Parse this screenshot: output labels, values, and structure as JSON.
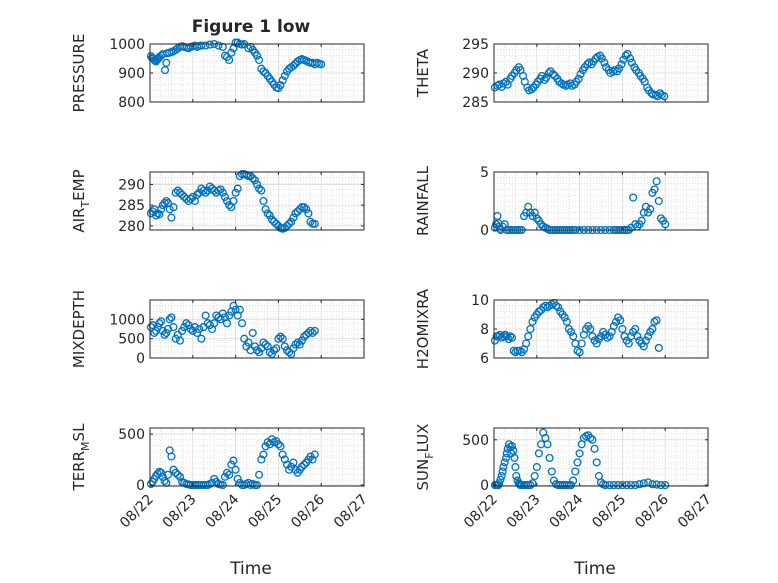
{
  "figure": {
    "title": "Figure 1 low",
    "xlabel": "Time",
    "x_tick_labels": [
      "08/22",
      "08/23",
      "08/24",
      "08/25",
      "08/26",
      "08/27"
    ],
    "marker_color": "#0072BD",
    "grid": "dotted minor + major",
    "marker": "open circle"
  },
  "chart_data": [
    {
      "type": "scatter",
      "ylabel": "PRESSURE",
      "xlim": [
        0,
        5
      ],
      "ylim": [
        800,
        1000
      ],
      "yticks": [
        800,
        900,
        1000
      ],
      "ytick_labels": [
        "800",
        "900",
        "1000"
      ],
      "x": [
        0.02,
        0.05,
        0.08,
        0.1,
        0.12,
        0.14,
        0.17,
        0.2,
        0.22,
        0.26,
        0.3,
        0.35,
        0.38,
        0.4,
        0.45,
        0.5,
        0.55,
        0.6,
        0.65,
        0.7,
        0.75,
        0.8,
        0.85,
        0.9,
        0.95,
        1.0,
        1.05,
        1.1,
        1.15,
        1.2,
        1.3,
        1.4,
        1.5,
        1.6,
        1.7,
        1.75,
        1.8,
        1.85,
        1.9,
        1.95,
        2.0,
        2.05,
        2.1,
        2.15,
        2.2,
        2.3,
        2.35,
        2.4,
        2.45,
        2.5,
        2.55,
        2.6,
        2.65,
        2.7,
        2.75,
        2.8,
        2.85,
        2.9,
        2.95,
        3.0,
        3.05,
        3.1,
        3.15,
        3.2,
        3.25,
        3.3,
        3.35,
        3.4,
        3.45,
        3.5,
        3.55,
        3.6,
        3.65,
        3.7,
        3.75,
        3.8,
        3.85,
        3.9,
        3.95,
        4.0
      ],
      "y": [
        958,
        952,
        950,
        945,
        942,
        940,
        948,
        950,
        955,
        960,
        965,
        910,
        935,
        968,
        970,
        972,
        975,
        980,
        985,
        990,
        992,
        990,
        988,
        985,
        990,
        992,
        995,
        990,
        993,
        995,
        995,
        998,
        1000,
        995,
        990,
        960,
        955,
        945,
        970,
        985,
        1005,
        1005,
        1000,
        998,
        1000,
        985,
        990,
        980,
        970,
        960,
        945,
        915,
        905,
        900,
        890,
        880,
        870,
        860,
        850,
        848,
        858,
        875,
        890,
        905,
        915,
        920,
        925,
        932,
        940,
        945,
        948,
        945,
        942,
        938,
        935,
        935,
        930,
        935,
        932,
        930
      ]
    },
    {
      "type": "scatter",
      "ylabel": "THETA",
      "xlim": [
        0,
        5
      ],
      "ylim": [
        285,
        295
      ],
      "yticks": [
        285,
        290,
        295
      ],
      "ytick_labels": [
        "285",
        "290",
        "295"
      ],
      "x": [
        0.02,
        0.08,
        0.12,
        0.18,
        0.22,
        0.28,
        0.32,
        0.38,
        0.42,
        0.48,
        0.52,
        0.58,
        0.62,
        0.68,
        0.72,
        0.78,
        0.82,
        0.88,
        0.92,
        0.98,
        1.02,
        1.08,
        1.12,
        1.18,
        1.22,
        1.28,
        1.32,
        1.38,
        1.42,
        1.48,
        1.52,
        1.58,
        1.62,
        1.68,
        1.72,
        1.78,
        1.82,
        1.88,
        1.92,
        1.98,
        2.02,
        2.08,
        2.12,
        2.18,
        2.22,
        2.28,
        2.32,
        2.38,
        2.42,
        2.48,
        2.52,
        2.58,
        2.62,
        2.68,
        2.72,
        2.78,
        2.82,
        2.88,
        2.92,
        2.98,
        3.02,
        3.08,
        3.12,
        3.18,
        3.22,
        3.28,
        3.32,
        3.38,
        3.42,
        3.48,
        3.52,
        3.58,
        3.62,
        3.68,
        3.72,
        3.78,
        3.82,
        3.88,
        3.92,
        3.98
      ],
      "y": [
        287.5,
        287.8,
        288,
        287.6,
        288.2,
        288.5,
        288,
        289,
        289.5,
        290,
        290.5,
        291,
        290.5,
        289.5,
        288.5,
        287.5,
        287,
        287.2,
        287.5,
        288,
        288.5,
        289,
        289.5,
        288.8,
        289.2,
        290,
        290.3,
        289.8,
        289.5,
        289,
        288.5,
        288.2,
        288,
        287.8,
        288,
        288.2,
        287.8,
        288,
        288.5,
        289,
        289.8,
        290.5,
        291,
        291.5,
        291.8,
        291.5,
        292,
        292.5,
        292.8,
        293,
        292.5,
        291.8,
        291,
        290.5,
        290,
        290.2,
        290.5,
        290.3,
        290.8,
        291.5,
        292.3,
        293,
        293.3,
        292.5,
        291.8,
        291,
        290.5,
        290,
        289.5,
        289,
        288.5,
        287.5,
        287,
        286.5,
        286.3,
        286.2,
        286,
        286.5,
        286.2,
        286
      ]
    },
    {
      "type": "scatter",
      "ylabel": "AIR_TEMP",
      "xlim": [
        0,
        5
      ],
      "ylim": [
        279,
        293
      ],
      "yticks": [
        280,
        285,
        290
      ],
      "ytick_labels": [
        "280",
        "285",
        "290"
      ],
      "x": [
        0.02,
        0.06,
        0.1,
        0.14,
        0.18,
        0.22,
        0.26,
        0.3,
        0.34,
        0.38,
        0.42,
        0.46,
        0.5,
        0.55,
        0.6,
        0.65,
        0.7,
        0.75,
        0.8,
        0.85,
        0.9,
        0.95,
        1.0,
        1.05,
        1.1,
        1.15,
        1.2,
        1.25,
        1.3,
        1.35,
        1.4,
        1.45,
        1.5,
        1.55,
        1.6,
        1.65,
        1.7,
        1.75,
        1.8,
        1.85,
        1.9,
        1.95,
        2.0,
        2.05,
        2.1,
        2.15,
        2.2,
        2.25,
        2.3,
        2.35,
        2.4,
        2.45,
        2.5,
        2.55,
        2.6,
        2.65,
        2.7,
        2.75,
        2.8,
        2.85,
        2.9,
        2.95,
        3.0,
        3.05,
        3.1,
        3.15,
        3.2,
        3.25,
        3.3,
        3.35,
        3.4,
        3.45,
        3.5,
        3.55,
        3.6,
        3.65,
        3.7,
        3.75,
        3.8,
        3.85
      ],
      "y": [
        283,
        283.5,
        284,
        282.5,
        283,
        282.8,
        284,
        285,
        285.5,
        286,
        285.5,
        284,
        282,
        284.5,
        288,
        288.5,
        288,
        287.5,
        287,
        286.5,
        286,
        286.5,
        287,
        286,
        287.5,
        288,
        289,
        288.5,
        288,
        288.5,
        289.5,
        289,
        288.5,
        288,
        288.5,
        288.8,
        288,
        287,
        286,
        285,
        284.5,
        286,
        288,
        289,
        292,
        292.5,
        292.5,
        292.3,
        292,
        292,
        291.5,
        291,
        290,
        289,
        288.5,
        286,
        284,
        283,
        282.5,
        281.5,
        281,
        280.5,
        280,
        279.5,
        279.3,
        279.5,
        280,
        280.5,
        281,
        282,
        283,
        283.5,
        284,
        284.5,
        284.5,
        284,
        283,
        281,
        280.5,
        280.5
      ]
    },
    {
      "type": "scatter",
      "ylabel": "RAINFALL",
      "xlim": [
        0,
        5
      ],
      "ylim": [
        0,
        5
      ],
      "yticks": [
        0,
        5
      ],
      "ytick_labels": [
        "0",
        "5"
      ],
      "x": [
        0.02,
        0.05,
        0.08,
        0.1,
        0.12,
        0.14,
        0.16,
        0.2,
        0.25,
        0.3,
        0.35,
        0.4,
        0.45,
        0.5,
        0.55,
        0.6,
        0.65,
        0.7,
        0.75,
        0.8,
        0.85,
        0.9,
        0.95,
        1.0,
        1.05,
        1.1,
        1.15,
        1.2,
        1.25,
        1.3,
        1.35,
        1.4,
        1.45,
        1.5,
        1.55,
        1.6,
        1.65,
        1.7,
        1.75,
        1.8,
        1.85,
        1.9,
        2.0,
        2.1,
        2.2,
        2.3,
        2.4,
        2.5,
        2.6,
        2.7,
        2.8,
        2.85,
        2.9,
        2.95,
        3.0,
        3.05,
        3.1,
        3.15,
        3.2,
        3.25,
        3.3,
        3.35,
        3.4,
        3.45,
        3.5,
        3.55,
        3.6,
        3.65,
        3.7,
        3.75,
        3.8,
        3.85,
        3.9,
        3.95,
        4.0
      ],
      "y": [
        0.2,
        0.5,
        1.2,
        0.6,
        0.3,
        0.1,
        0.0,
        0.3,
        0.5,
        0.0,
        0.0,
        0.0,
        0.0,
        0.0,
        0.0,
        0.0,
        0.0,
        1.2,
        1.5,
        2.0,
        1.5,
        1.2,
        1.5,
        1.0,
        0.8,
        0.5,
        0.3,
        0.2,
        0.1,
        0.0,
        0.0,
        0.0,
        0.0,
        0.0,
        0.0,
        0.0,
        0.0,
        0.0,
        0.0,
        0.0,
        0.0,
        0.0,
        0.0,
        0.0,
        0.0,
        0.0,
        0.0,
        0.0,
        0.0,
        0.0,
        0.0,
        0.0,
        0.0,
        0.0,
        0.0,
        0.0,
        0.0,
        0.0,
        0.2,
        2.8,
        0.5,
        0.3,
        0.5,
        0.8,
        1.5,
        2.0,
        1.5,
        1.8,
        3.2,
        3.5,
        4.2,
        2.5,
        1.0,
        0.8,
        0.5
      ]
    },
    {
      "type": "scatter",
      "ylabel": "MIXDEPTH",
      "xlim": [
        0,
        5
      ],
      "ylim": [
        0,
        1500
      ],
      "yticks": [
        0,
        500,
        1000
      ],
      "ytick_labels": [
        "0",
        "500",
        "1000"
      ],
      "x": [
        0.02,
        0.06,
        0.1,
        0.14,
        0.18,
        0.22,
        0.26,
        0.3,
        0.34,
        0.38,
        0.42,
        0.46,
        0.5,
        0.55,
        0.6,
        0.65,
        0.7,
        0.75,
        0.8,
        0.85,
        0.9,
        0.95,
        1.0,
        1.05,
        1.1,
        1.15,
        1.2,
        1.25,
        1.3,
        1.35,
        1.4,
        1.45,
        1.5,
        1.55,
        1.6,
        1.65,
        1.7,
        1.75,
        1.8,
        1.85,
        1.9,
        1.95,
        2.0,
        2.05,
        2.1,
        2.15,
        2.2,
        2.25,
        2.3,
        2.35,
        2.4,
        2.45,
        2.5,
        2.55,
        2.6,
        2.65,
        2.7,
        2.75,
        2.8,
        2.85,
        2.9,
        2.95,
        3.0,
        3.05,
        3.1,
        3.15,
        3.2,
        3.25,
        3.3,
        3.35,
        3.4,
        3.45,
        3.5,
        3.55,
        3.6,
        3.65,
        3.7,
        3.75,
        3.8,
        3.85
      ],
      "y": [
        800,
        850,
        650,
        700,
        800,
        900,
        950,
        700,
        600,
        650,
        750,
        1000,
        1050,
        800,
        500,
        600,
        450,
        700,
        800,
        900,
        850,
        750,
        700,
        800,
        650,
        750,
        500,
        800,
        1100,
        900,
        850,
        750,
        900,
        1100,
        1050,
        1000,
        1150,
        1050,
        900,
        1100,
        1200,
        1350,
        1250,
        1100,
        1250,
        900,
        500,
        300,
        400,
        200,
        650,
        300,
        200,
        150,
        250,
        400,
        350,
        300,
        150,
        100,
        200,
        250,
        500,
        550,
        500,
        300,
        200,
        150,
        100,
        250,
        350,
        400,
        350,
        450,
        550,
        600,
        650,
        700,
        650,
        700
      ]
    },
    {
      "type": "scatter",
      "ylabel": "H2OMIXRA",
      "xlim": [
        0,
        5
      ],
      "ylim": [
        6,
        10
      ],
      "yticks": [
        6,
        8,
        10
      ],
      "ytick_labels": [
        "6",
        "8",
        "10"
      ],
      "x": [
        0.02,
        0.06,
        0.1,
        0.14,
        0.18,
        0.22,
        0.26,
        0.3,
        0.34,
        0.38,
        0.42,
        0.46,
        0.5,
        0.55,
        0.6,
        0.65,
        0.7,
        0.75,
        0.8,
        0.85,
        0.9,
        0.95,
        1.0,
        1.05,
        1.1,
        1.15,
        1.2,
        1.25,
        1.3,
        1.35,
        1.4,
        1.45,
        1.5,
        1.55,
        1.6,
        1.65,
        1.7,
        1.75,
        1.8,
        1.85,
        1.9,
        1.95,
        2.0,
        2.05,
        2.1,
        2.15,
        2.2,
        2.25,
        2.3,
        2.35,
        2.4,
        2.45,
        2.5,
        2.55,
        2.6,
        2.65,
        2.7,
        2.75,
        2.8,
        2.85,
        2.9,
        2.95,
        3.0,
        3.05,
        3.1,
        3.15,
        3.2,
        3.25,
        3.3,
        3.35,
        3.4,
        3.45,
        3.5,
        3.55,
        3.6,
        3.65,
        3.7,
        3.75,
        3.8,
        3.85
      ],
      "y": [
        7.2,
        7.5,
        7.5,
        7.6,
        7.4,
        7.5,
        7.6,
        7.5,
        7.3,
        7.5,
        7.4,
        6.5,
        6.4,
        6.5,
        6.5,
        6.4,
        6.6,
        7.0,
        7.5,
        8.0,
        8.5,
        8.8,
        9.0,
        9.2,
        9.3,
        9.5,
        9.6,
        9.5,
        9.6,
        9.7,
        9.8,
        9.6,
        9.5,
        9.2,
        9.0,
        8.8,
        8.5,
        8.0,
        7.8,
        7.5,
        7.0,
        6.5,
        6.4,
        7.0,
        7.6,
        8.0,
        8.2,
        8.0,
        7.5,
        7.2,
        7.0,
        7.3,
        7.5,
        7.8,
        7.6,
        7.4,
        7.5,
        7.8,
        8.2,
        8.5,
        8.8,
        8.6,
        8.0,
        7.5,
        7.2,
        7.0,
        7.5,
        7.8,
        8.0,
        7.5,
        7.2,
        7.0,
        6.8,
        7.2,
        7.5,
        7.8,
        8.0,
        8.5,
        8.6,
        6.7
      ]
    },
    {
      "type": "scatter",
      "ylabel": "TERR_MSL",
      "xlim": [
        0,
        5
      ],
      "ylim": [
        -10,
        560
      ],
      "yticks": [
        0,
        500
      ],
      "ytick_labels": [
        "0",
        "500"
      ],
      "x": [
        0.02,
        0.06,
        0.1,
        0.14,
        0.18,
        0.22,
        0.26,
        0.3,
        0.34,
        0.38,
        0.42,
        0.46,
        0.5,
        0.55,
        0.6,
        0.65,
        0.7,
        0.75,
        0.8,
        0.85,
        0.9,
        0.95,
        1.0,
        1.05,
        1.1,
        1.15,
        1.2,
        1.25,
        1.3,
        1.35,
        1.4,
        1.45,
        1.5,
        1.55,
        1.6,
        1.65,
        1.7,
        1.75,
        1.8,
        1.85,
        1.9,
        1.95,
        2.0,
        2.05,
        2.1,
        2.15,
        2.2,
        2.25,
        2.3,
        2.35,
        2.4,
        2.45,
        2.5,
        2.55,
        2.6,
        2.65,
        2.7,
        2.75,
        2.8,
        2.85,
        2.9,
        2.95,
        3.0,
        3.05,
        3.1,
        3.15,
        3.2,
        3.25,
        3.3,
        3.35,
        3.4,
        3.45,
        3.5,
        3.55,
        3.6,
        3.65,
        3.7,
        3.75,
        3.8,
        3.85
      ],
      "y": [
        10,
        30,
        60,
        90,
        110,
        130,
        120,
        80,
        40,
        20,
        100,
        340,
        280,
        150,
        120,
        100,
        80,
        30,
        20,
        10,
        5,
        0,
        0,
        0,
        0,
        0,
        0,
        0,
        0,
        0,
        10,
        20,
        60,
        30,
        10,
        5,
        0,
        80,
        120,
        100,
        200,
        240,
        150,
        60,
        20,
        0,
        0,
        10,
        20,
        0,
        10,
        0,
        0,
        100,
        250,
        300,
        380,
        420,
        400,
        450,
        420,
        430,
        400,
        380,
        300,
        250,
        200,
        150,
        180,
        220,
        150,
        120,
        150,
        180,
        200,
        220,
        250,
        280,
        250,
        300
      ]
    },
    {
      "type": "scatter",
      "ylabel": "SUN_FLUX",
      "xlim": [
        0,
        5
      ],
      "ylim": [
        -10,
        630
      ],
      "yticks": [
        0,
        500
      ],
      "ytick_labels": [
        "0",
        "500"
      ],
      "x": [
        0.02,
        0.05,
        0.08,
        0.1,
        0.12,
        0.15,
        0.18,
        0.2,
        0.22,
        0.25,
        0.28,
        0.3,
        0.32,
        0.35,
        0.38,
        0.4,
        0.42,
        0.45,
        0.48,
        0.5,
        0.52,
        0.55,
        0.58,
        0.6,
        0.62,
        0.65,
        0.7,
        0.75,
        0.8,
        0.85,
        0.9,
        0.95,
        1.0,
        1.05,
        1.1,
        1.15,
        1.2,
        1.25,
        1.3,
        1.35,
        1.4,
        1.45,
        1.5,
        1.55,
        1.6,
        1.65,
        1.7,
        1.75,
        1.8,
        1.85,
        1.9,
        1.95,
        2.0,
        2.05,
        2.1,
        2.15,
        2.2,
        2.25,
        2.3,
        2.35,
        2.4,
        2.45,
        2.5,
        2.55,
        2.6,
        2.7,
        2.8,
        2.9,
        3.0,
        3.1,
        3.2,
        3.3,
        3.4,
        3.5,
        3.6,
        3.7,
        3.8,
        3.9,
        4.0
      ],
      "y": [
        0,
        0,
        0,
        0,
        20,
        60,
        100,
        150,
        200,
        250,
        300,
        350,
        400,
        450,
        420,
        350,
        430,
        380,
        300,
        200,
        100,
        50,
        20,
        10,
        0,
        0,
        0,
        0,
        0,
        0,
        20,
        100,
        200,
        350,
        450,
        580,
        520,
        450,
        300,
        150,
        50,
        10,
        0,
        0,
        0,
        0,
        0,
        0,
        0,
        50,
        150,
        250,
        350,
        450,
        520,
        540,
        550,
        520,
        500,
        400,
        250,
        100,
        30,
        10,
        0,
        0,
        0,
        0,
        0,
        0,
        0,
        0,
        10,
        20,
        30,
        10,
        5,
        0,
        0
      ]
    }
  ]
}
